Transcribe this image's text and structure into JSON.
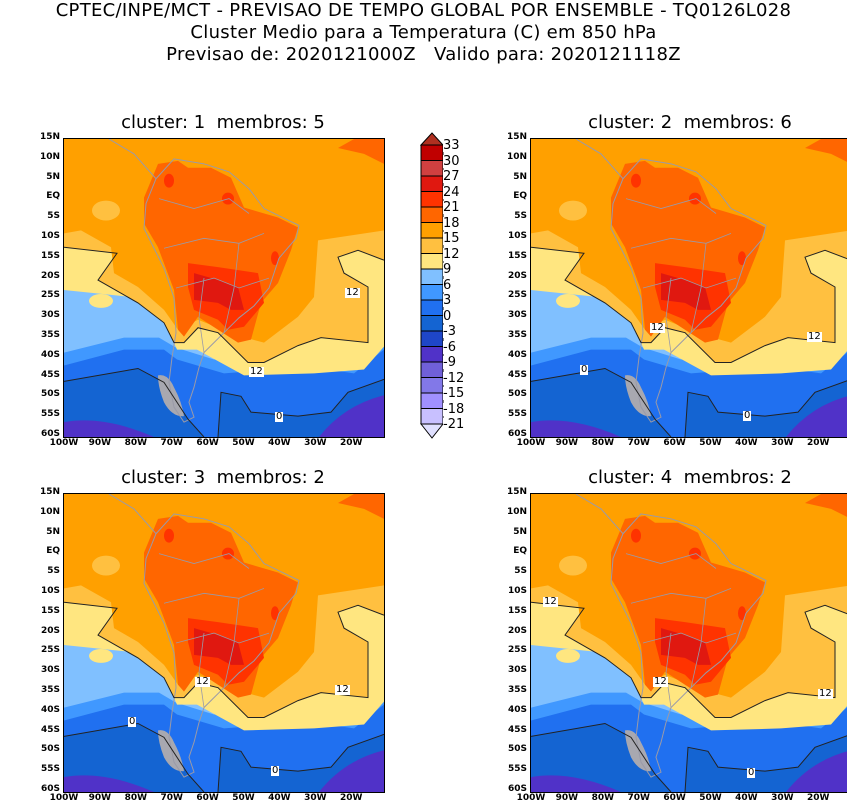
{
  "header": {
    "line1": "CPTEC/INPE/MCT - PREVISAO DE TEMPO GLOBAL POR ENSEMBLE - TQ0126L028",
    "line2": "Cluster Medio para a Temperatura (C) em 850 hPa",
    "line3": "Previsao de: 2020121000Z   Valido para: 2020121118Z"
  },
  "panels": [
    {
      "title": "cluster: 1  membros: 5",
      "contour_labels": [
        "12",
        "12",
        "0"
      ]
    },
    {
      "title": "cluster: 2  membros: 6",
      "contour_labels": [
        "12",
        "12",
        "0",
        "0"
      ]
    },
    {
      "title": "cluster: 3  membros: 2",
      "contour_labels": [
        "12",
        "12",
        "0",
        "0"
      ]
    },
    {
      "title": "cluster: 4  membros: 2",
      "contour_labels": [
        "12",
        "12",
        "12",
        "0"
      ]
    }
  ],
  "axes": {
    "lat_ticks": [
      "15N",
      "10N",
      "5N",
      "EQ",
      "5S",
      "10S",
      "15S",
      "20S",
      "25S",
      "30S",
      "35S",
      "40S",
      "45S",
      "50S",
      "55S",
      "60S"
    ],
    "lon_ticks": [
      "100W",
      "90W",
      "80W",
      "70W",
      "60W",
      "50W",
      "40W",
      "30W",
      "20W"
    ]
  },
  "colorbar": {
    "labels": [
      "33",
      "30",
      "27",
      "24",
      "21",
      "18",
      "15",
      "12",
      "9",
      "6",
      "3",
      "0",
      "-3",
      "-6",
      "-9",
      "-12",
      "-15",
      "-18",
      "-21"
    ],
    "colors": [
      "#c00000",
      "#d04040",
      "#e01810",
      "#ff3300",
      "#ff6600",
      "#ffa000",
      "#ffc040",
      "#ffe680",
      "#80c0ff",
      "#4098ff",
      "#2070f0",
      "#1464d2",
      "#1e46c8",
      "#5032c8",
      "#7060d8",
      "#8278e8",
      "#a090ff",
      "#c8c0ff"
    ],
    "over_color": "#b03020",
    "under_color": "#e0e0ff"
  }
}
